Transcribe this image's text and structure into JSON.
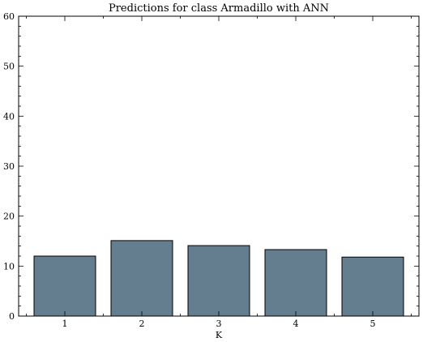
{
  "chart_data": {
    "type": "bar",
    "title": "Predictions for class Armadillo with ANN",
    "xlabel": "K",
    "ylabel": "",
    "categories": [
      "1",
      "2",
      "3",
      "4",
      "5"
    ],
    "values": [
      12.0,
      15.1,
      14.1,
      13.3,
      11.8
    ],
    "ylim": [
      0,
      60
    ],
    "yticks": [
      0,
      10,
      20,
      30,
      40,
      50,
      60
    ],
    "bar_color": "#647e90",
    "edge_color": "#000000",
    "grid": false,
    "legend": "none"
  }
}
